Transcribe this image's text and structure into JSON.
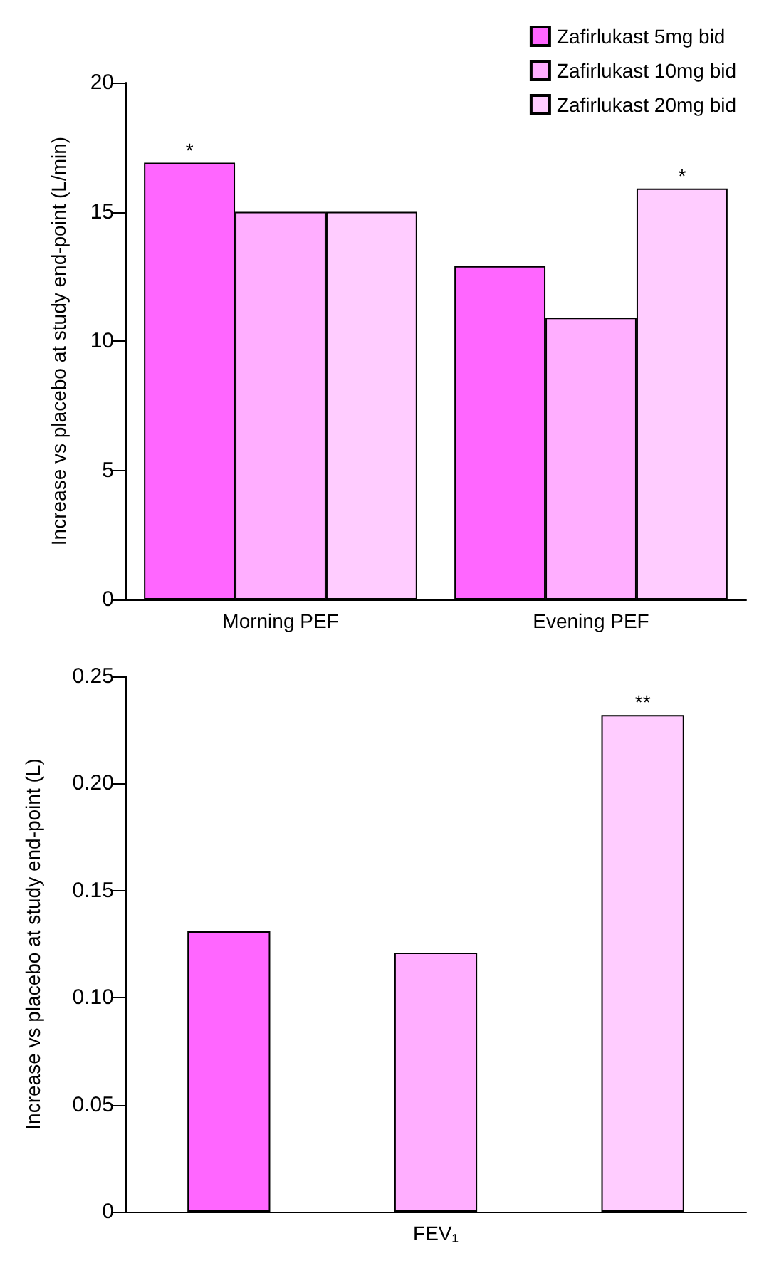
{
  "chart_data": [
    {
      "type": "bar",
      "ylabel": "Increase vs placebo at study end-point (L/min)",
      "categories": [
        "Morning PEF",
        "Evening PEF"
      ],
      "series": [
        {
          "name": "Zafirlukast 5mg bid",
          "color": "#ff66ff",
          "values": [
            16.9,
            12.9
          ],
          "value_labels": [
            "*",
            null
          ]
        },
        {
          "name": "Zafirlukast 10mg bid",
          "color": "#ffaeff",
          "values": [
            15,
            10.9
          ]
        },
        {
          "name": "Zafirlukast 20mg bid",
          "color": "#ffccff",
          "values": [
            15,
            15.9
          ],
          "value_labels": [
            null,
            "*"
          ]
        }
      ],
      "ylim": [
        0,
        20
      ],
      "yticks": [
        0,
        5,
        10,
        15,
        20
      ],
      "grid": false,
      "legend": "top right"
    },
    {
      "type": "bar",
      "ylabel": "Increase vs placebo at study end-point (L)",
      "categories": [
        "FEV₁"
      ],
      "series": [
        {
          "color": "#ff66ff",
          "values": [
            0.131
          ]
        },
        {
          "color": "#ffaeff",
          "values": [
            0.121
          ]
        },
        {
          "color": "#ffccff",
          "values": [
            0.232
          ],
          "value_labels": [
            "**"
          ]
        }
      ],
      "ylim": [
        0,
        0.25
      ],
      "yticks": [
        0,
        0.05,
        {
          "value": 0.1,
          "label": "0.10"
        },
        0.15,
        {
          "value": 0.2,
          "label": "0.20"
        },
        0.25
      ],
      "grid": false,
      "legend": false
    }
  ]
}
